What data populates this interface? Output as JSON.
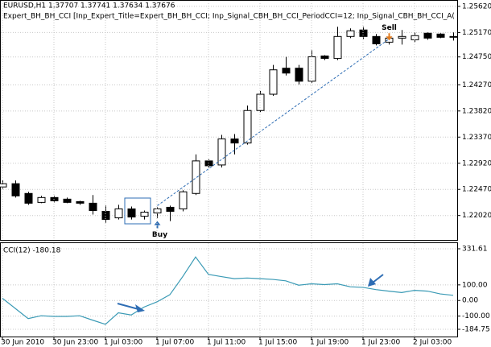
{
  "chart_data": [
    {
      "type": "candlestick",
      "title": "EURUSD,H1  1.37707 1.37741 1.37634 1.37676",
      "subtitle": "Expert_BH_BH_CCI [Inp_Expert_Title=Expert_BH_BH_CCI; Inp_Signal_CBH_BH_CCI_PeriodCCI=12; Inp_Signal_CBH_BH_CCI_A(",
      "open": [
        1.22512,
        1.22568,
        1.224,
        1.22246,
        1.2233,
        1.22302,
        1.2226,
        1.22232,
        1.22092,
        1.2198,
        1.22134,
        1.22008,
        1.22064,
        1.22162,
        1.22134,
        1.224,
        1.2296,
        1.2289,
        1.23338,
        1.23268,
        1.23828,
        1.24108,
        1.24556,
        1.24556,
        1.24332,
        1.24766,
        1.24724,
        1.25102,
        1.25214,
        1.25102,
        1.25004,
        1.25074,
        1.25046,
        1.25158,
        1.25144,
        1.25102
      ],
      "high": [
        1.22624,
        1.22624,
        1.22428,
        1.22358,
        1.22358,
        1.2233,
        1.22274,
        1.22372,
        1.2219,
        1.22204,
        1.22176,
        1.22106,
        1.22162,
        1.2219,
        1.22456,
        1.23072,
        1.22988,
        1.23408,
        1.23422,
        1.23912,
        1.24164,
        1.24612,
        1.24752,
        1.24612,
        1.24864,
        1.2478,
        1.2527,
        1.25242,
        1.2527,
        1.25144,
        1.25144,
        1.25214,
        1.25172,
        1.25172,
        1.25158,
        1.25172
      ],
      "low": [
        1.22484,
        1.2233,
        1.22204,
        1.22232,
        1.22246,
        1.22232,
        1.22204,
        1.22036,
        1.21896,
        1.21952,
        1.21952,
        1.21952,
        1.2198,
        1.21924,
        1.22092,
        1.22372,
        1.22848,
        1.22848,
        1.23072,
        1.2324,
        1.238,
        1.2408,
        1.2443,
        1.24276,
        1.24304,
        1.24696,
        1.24696,
        1.25074,
        1.2506,
        1.24948,
        1.24962,
        1.24962,
        1.25004,
        1.25046,
        1.25074,
        1.25032
      ],
      "close": [
        1.22568,
        1.22358,
        1.22232,
        1.2233,
        1.22274,
        1.22246,
        1.22232,
        1.22106,
        1.21952,
        1.22134,
        1.21994,
        1.22078,
        1.22134,
        1.22092,
        1.22428,
        1.2296,
        1.22876,
        1.23338,
        1.23268,
        1.23828,
        1.24108,
        1.24528,
        1.24472,
        1.24332,
        1.24752,
        1.24724,
        1.25102,
        1.252,
        1.25102,
        1.24976,
        1.25074,
        1.25102,
        1.25116,
        1.25074,
        1.25088,
        1.25102
      ],
      "up_color": "#ffffff",
      "down_color": "#000000",
      "ylim": [
        1.216,
        1.2573
      ],
      "yticks": [
        {
          "value": 1.2562,
          "label": "1.25620"
        },
        {
          "value": 1.2517,
          "label": "1.25170"
        },
        {
          "value": 1.2475,
          "label": "1.24750"
        },
        {
          "value": 1.2427,
          "label": "1.24270"
        },
        {
          "value": 1.2382,
          "label": "1.23820"
        },
        {
          "value": 1.2337,
          "label": "1.23370"
        },
        {
          "value": 1.2292,
          "label": "1.22920"
        },
        {
          "value": 1.2247,
          "label": "1.22470"
        },
        {
          "value": 1.2202,
          "label": "1.22020"
        }
      ],
      "grid": true,
      "annotations": [
        {
          "text": "Buy",
          "color": "#2e6db4"
        },
        {
          "text": "Sell",
          "color": "#d03a2a"
        }
      ]
    },
    {
      "type": "line",
      "title": "CCI(12) -180.18",
      "categories": [
        "30 Jun 2010",
        null,
        null,
        null,
        "30 Jun 23:00",
        null,
        null,
        null,
        "1 Jul 03:00",
        null,
        null,
        null,
        "1 Jul 07:00",
        null,
        null,
        null,
        "1 Jul 11:00",
        null,
        null,
        null,
        "1 Jul 15:00",
        null,
        null,
        null,
        "1 Jul 19:00",
        null,
        null,
        null,
        "1 Jul 23:00",
        null,
        null,
        null,
        "2 Jul 03:00",
        null,
        null,
        null
      ],
      "values": [
        14,
        -51,
        -116,
        -98,
        -102,
        -102,
        -98,
        -126,
        -153,
        -79,
        -93,
        -42,
        -9,
        37,
        153,
        279,
        167,
        153,
        140,
        144,
        140,
        135,
        126,
        98,
        107,
        102,
        107,
        88,
        84,
        70,
        60,
        51,
        65,
        60,
        42,
        33
      ],
      "color": "#3a9ab5",
      "ylim": [
        -184.75,
        331.61
      ],
      "yticks": [
        331.61,
        {
          "value": 100,
          "label": "100.00"
        },
        {
          "value": 0,
          "label": "0.00"
        },
        {
          "value": -100,
          "label": "-100.00"
        },
        -184.75
      ],
      "grid": true
    }
  ]
}
